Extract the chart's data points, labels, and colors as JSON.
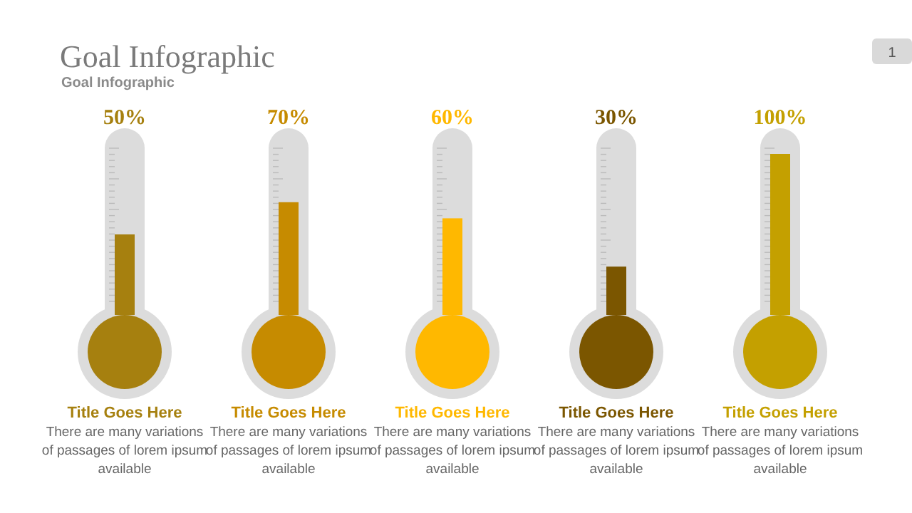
{
  "chart_data": {
    "type": "bar",
    "title": "Goal Infographic",
    "subtitle": "Goal Infographic",
    "categories": [
      "Title Goes Here",
      "Title Goes Here",
      "Title Goes Here",
      "Title Goes Here",
      "Title Goes Here"
    ],
    "values": [
      50,
      70,
      60,
      30,
      100
    ],
    "colors": [
      "#a6800f",
      "#c68b00",
      "#ffb800",
      "#7b5600",
      "#c4a000"
    ],
    "value_labels": [
      "50%",
      "70%",
      "60%",
      "30%",
      "100%"
    ],
    "annotations": [
      "There are many variations of passages of lorem ipsum available",
      "There are many variations of passages of lorem ipsum available",
      "There are many variations of passages of lorem ipsum available",
      "There are many variations of passages of lorem ipsum available",
      "There are many variations of passages of lorem ipsum available",
      "1"
    ]
  }
}
